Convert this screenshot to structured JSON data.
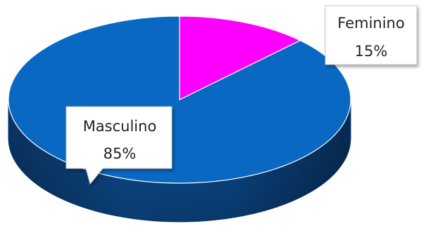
{
  "chart_data": {
    "type": "pie",
    "style": "3d",
    "slices": [
      {
        "label": "Feminino",
        "value": 15,
        "value_label": "15%",
        "color": "#ff00ff"
      },
      {
        "label": "Masculino",
        "value": 85,
        "value_label": "85%",
        "color": "#0868c2"
      }
    ]
  }
}
